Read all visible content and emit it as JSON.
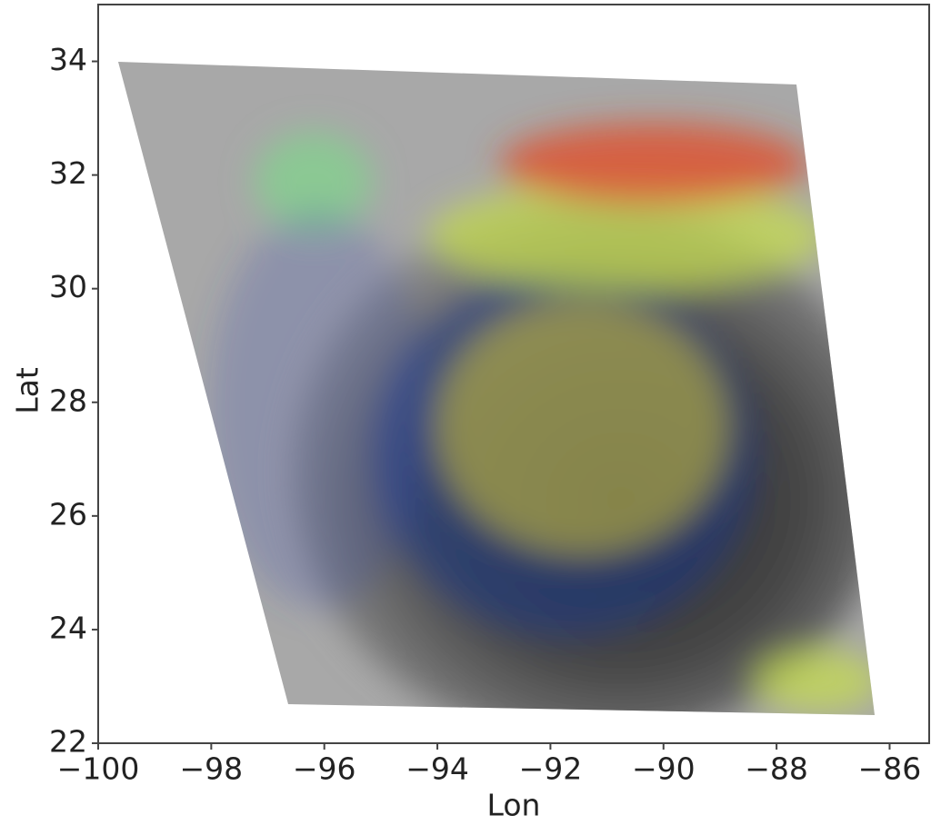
{
  "chart_data": {
    "type": "quiver-map",
    "xlabel": "Lon",
    "ylabel": "Lat",
    "xlim": [
      -100,
      -85.3
    ],
    "ylim": [
      22,
      35
    ],
    "xticks": [
      {
        "value": -100,
        "label": "−100"
      },
      {
        "value": -98,
        "label": "−98"
      },
      {
        "value": -96,
        "label": "−96"
      },
      {
        "value": -94,
        "label": "−94"
      },
      {
        "value": -92,
        "label": "−92"
      },
      {
        "value": -90,
        "label": "−90"
      },
      {
        "value": -88,
        "label": "−88"
      },
      {
        "value": -86,
        "label": "−86"
      }
    ],
    "yticks": [
      22,
      24,
      26,
      28,
      30,
      32,
      34
    ]
  }
}
